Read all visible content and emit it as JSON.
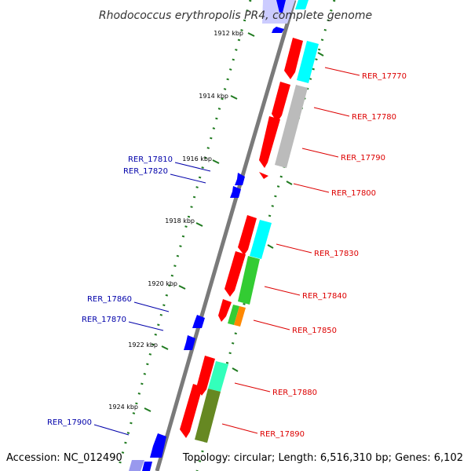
{
  "title": "Rhodococcus erythropolis PR4, complete genome",
  "accession": "Accession: NC_012490",
  "summary": "Topology: circular; Length: 6,516,310 bp; Genes: 6,102",
  "colors": {
    "backbone": "#8c8c8c",
    "tick": "#1f7a1f",
    "forward_label": "#dd0000",
    "reverse_label": "#0000aa",
    "cds_red": "#ff0000",
    "cds_blue": "#0000ff",
    "cyan": "#00ffff",
    "gray": "#b0b0b0",
    "green": "#33cc33",
    "orange": "#ff8800",
    "aquamarine": "#33ffbb",
    "olive": "#668822",
    "lavender": "#9999ee"
  },
  "kbp_ticks": [
    "1912 kbp",
    "1914 kbp",
    "1916 kbp",
    "1918 kbp",
    "1920 kbp",
    "1922 kbp",
    "1924 kbp"
  ],
  "forward_genes": [
    "RER_17770",
    "RER_17780",
    "RER_17790",
    "RER_17800",
    "RER_17830",
    "RER_17840",
    "RER_17850",
    "RER_17880",
    "RER_17890"
  ],
  "reverse_genes": [
    "RER_17810",
    "RER_17820",
    "RER_17860",
    "RER_17870",
    "RER_17900"
  ]
}
